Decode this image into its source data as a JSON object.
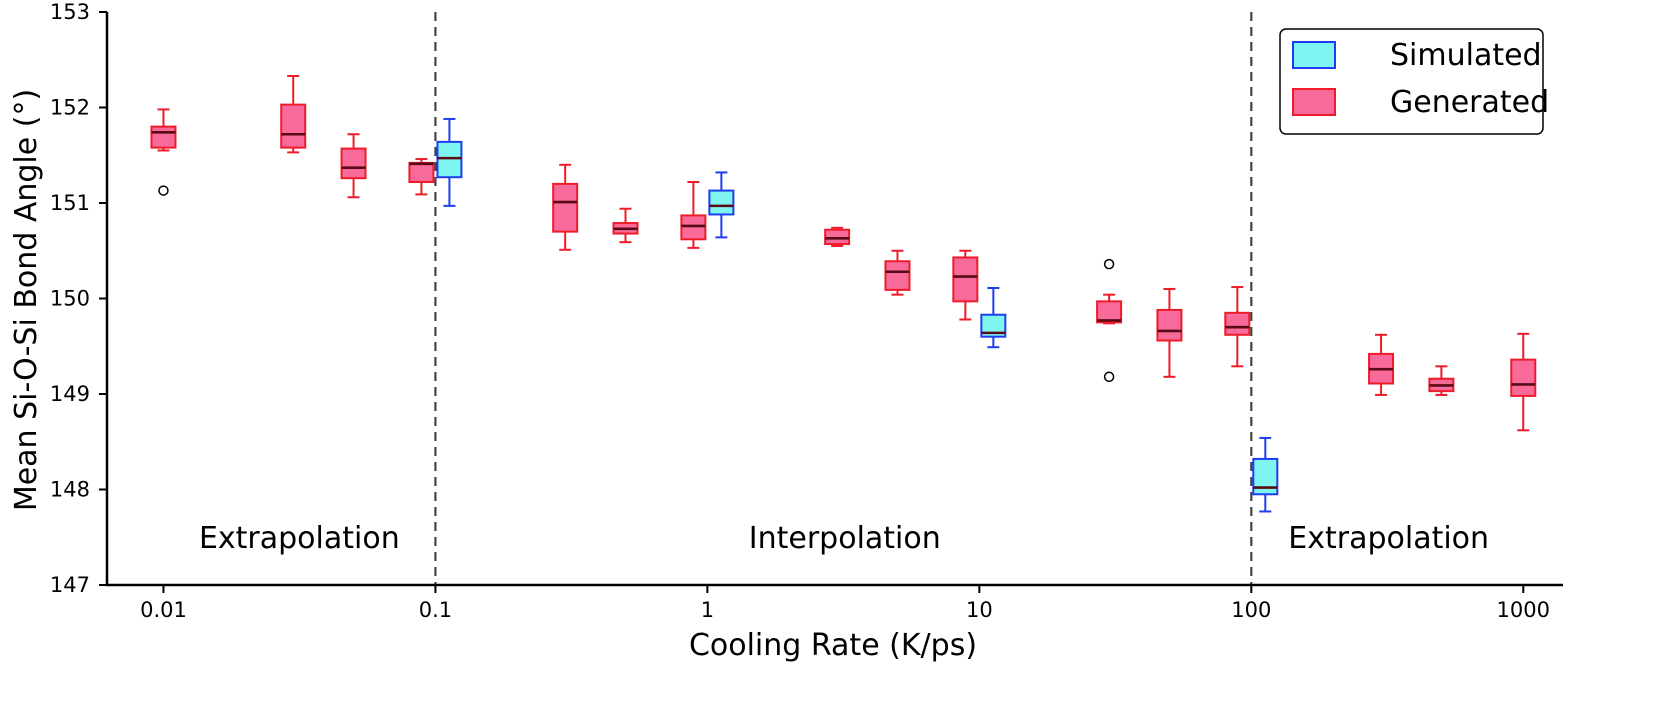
{
  "chart_data": {
    "type": "box",
    "xlabel": "Cooling Rate (K/ps)",
    "ylabel": "Mean Si-O-Si Bond Angle (°)",
    "xscale": "log",
    "xlim": [
      0.0062,
      1400
    ],
    "ylim": [
      147,
      153
    ],
    "y_ticks": [
      {
        "value": 147,
        "label": "147"
      },
      {
        "value": 148,
        "label": "148"
      },
      {
        "value": 149,
        "label": "149"
      },
      {
        "value": 150,
        "label": "150"
      },
      {
        "value": 151,
        "label": "151"
      },
      {
        "value": 152,
        "label": "152"
      },
      {
        "value": 153,
        "label": "153"
      }
    ],
    "x_ticks": [
      {
        "value": 0.01,
        "label": "0.01"
      },
      {
        "value": 0.1,
        "label": "0.1"
      },
      {
        "value": 1,
        "label": "1"
      },
      {
        "value": 10,
        "label": "10"
      },
      {
        "value": 100,
        "label": "100"
      },
      {
        "value": 1000,
        "label": "1000"
      }
    ],
    "vlines": [
      0.1,
      100
    ],
    "regions": [
      {
        "label": "Extrapolation",
        "x": 0.0316
      },
      {
        "label": "Interpolation",
        "x": 3.2
      },
      {
        "label": "Extrapolation",
        "x": 320
      }
    ],
    "legend": {
      "position": "upper-right",
      "entries": [
        {
          "series": "Simulated",
          "label": "Simulated"
        },
        {
          "series": "Generated",
          "label": "Generated"
        }
      ]
    },
    "series": [
      {
        "name": "Simulated",
        "fill": "#7ff5f2",
        "stroke": "#1f3df0",
        "boxes": [
          {
            "x": 0.1,
            "whislo": 150.97,
            "q1": 151.27,
            "med": 151.47,
            "q3": 151.64,
            "whishi": 151.88,
            "fliers": []
          },
          {
            "x": 1,
            "whislo": 150.64,
            "q1": 150.88,
            "med": 150.97,
            "q3": 151.13,
            "whishi": 151.32,
            "fliers": []
          },
          {
            "x": 10,
            "whislo": 149.49,
            "q1": 149.6,
            "med": 149.64,
            "q3": 149.83,
            "whishi": 150.11,
            "fliers": []
          },
          {
            "x": 100,
            "whislo": 147.77,
            "q1": 147.95,
            "med": 148.02,
            "q3": 148.32,
            "whishi": 148.54,
            "fliers": []
          }
        ]
      },
      {
        "name": "Generated",
        "fill": "#f76a9a",
        "stroke": "#ee1c2a",
        "boxes": [
          {
            "x": 0.01,
            "whislo": 151.55,
            "q1": 151.58,
            "med": 151.74,
            "q3": 151.8,
            "whishi": 151.98,
            "fliers": [
              151.13
            ]
          },
          {
            "x": 0.03,
            "whislo": 151.53,
            "q1": 151.58,
            "med": 151.72,
            "q3": 152.03,
            "whishi": 152.33,
            "fliers": []
          },
          {
            "x": 0.05,
            "whislo": 151.06,
            "q1": 151.26,
            "med": 151.37,
            "q3": 151.57,
            "whishi": 151.72,
            "fliers": []
          },
          {
            "x": 0.1,
            "whislo": 151.09,
            "q1": 151.22,
            "med": 151.41,
            "q3": 151.42,
            "whishi": 151.46,
            "fliers": []
          },
          {
            "x": 0.3,
            "whislo": 150.51,
            "q1": 150.7,
            "med": 151.01,
            "q3": 151.2,
            "whishi": 151.4,
            "fliers": []
          },
          {
            "x": 0.5,
            "whislo": 150.59,
            "q1": 150.68,
            "med": 150.73,
            "q3": 150.79,
            "whishi": 150.94,
            "fliers": []
          },
          {
            "x": 1,
            "whislo": 150.53,
            "q1": 150.62,
            "med": 150.76,
            "q3": 150.87,
            "whishi": 151.22,
            "fliers": []
          },
          {
            "x": 3,
            "whislo": 150.55,
            "q1": 150.57,
            "med": 150.63,
            "q3": 150.72,
            "whishi": 150.74,
            "fliers": []
          },
          {
            "x": 5,
            "whislo": 150.04,
            "q1": 150.09,
            "med": 150.28,
            "q3": 150.39,
            "whishi": 150.5,
            "fliers": []
          },
          {
            "x": 10,
            "whislo": 149.78,
            "q1": 149.97,
            "med": 150.23,
            "q3": 150.43,
            "whishi": 150.5,
            "fliers": []
          },
          {
            "x": 30,
            "whislo": 149.74,
            "q1": 149.75,
            "med": 149.77,
            "q3": 149.97,
            "whishi": 150.04,
            "fliers": [
              150.36,
              149.18
            ]
          },
          {
            "x": 50,
            "whislo": 149.18,
            "q1": 149.56,
            "med": 149.66,
            "q3": 149.88,
            "whishi": 150.1,
            "fliers": []
          },
          {
            "x": 100,
            "whislo": 149.29,
            "q1": 149.62,
            "med": 149.7,
            "q3": 149.85,
            "whishi": 150.12,
            "fliers": []
          },
          {
            "x": 300,
            "whislo": 148.99,
            "q1": 149.11,
            "med": 149.26,
            "q3": 149.42,
            "whishi": 149.62,
            "fliers": []
          },
          {
            "x": 500,
            "whislo": 148.99,
            "q1": 149.03,
            "med": 149.09,
            "q3": 149.16,
            "whishi": 149.29,
            "fliers": []
          },
          {
            "x": 1000,
            "whislo": 148.62,
            "q1": 148.98,
            "med": 149.1,
            "q3": 149.36,
            "whishi": 149.63,
            "fliers": []
          }
        ]
      }
    ]
  }
}
